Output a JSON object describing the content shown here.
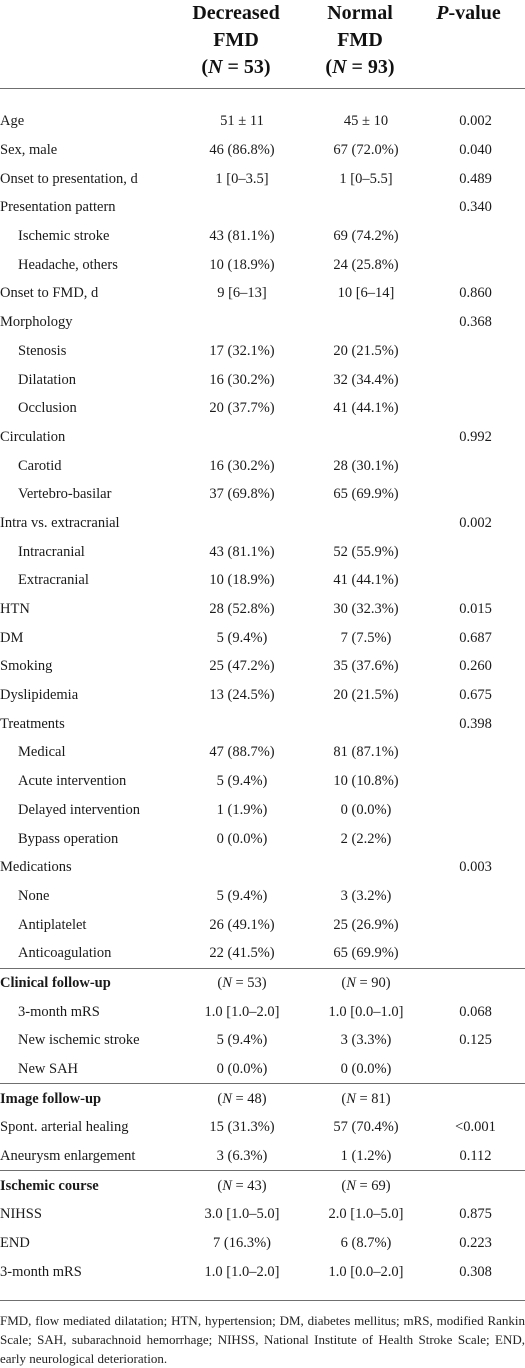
{
  "header": {
    "col1": [
      "Decreased",
      "FMD",
      "(N = 53)"
    ],
    "col2": [
      "Normal",
      "FMD",
      "(N = 93)"
    ],
    "col3": "P-value"
  },
  "rows": [
    {
      "label": "Age",
      "a": "51 ± 11",
      "b": "45 ± 10",
      "p": "0.002",
      "indent": false,
      "section": false
    },
    {
      "label": "Sex, male",
      "a": "46 (86.8%)",
      "b": "67 (72.0%)",
      "p": "0.040",
      "indent": false,
      "section": false
    },
    {
      "label": "Onset to presentation, d",
      "a": "1 [0–3.5]",
      "b": "1 [0–5.5]",
      "p": "0.489",
      "indent": false,
      "section": false
    },
    {
      "label": "Presentation pattern",
      "a": "",
      "b": "",
      "p": "0.340",
      "indent": false,
      "section": false
    },
    {
      "label": "Ischemic stroke",
      "a": "43 (81.1%)",
      "b": "69 (74.2%)",
      "p": "",
      "indent": true,
      "section": false
    },
    {
      "label": "Headache, others",
      "a": "10 (18.9%)",
      "b": "24 (25.8%)",
      "p": "",
      "indent": true,
      "section": false
    },
    {
      "label": "Onset to FMD, d",
      "a": "9 [6–13]",
      "b": "10 [6–14]",
      "p": "0.860",
      "indent": false,
      "section": false
    },
    {
      "label": "Morphology",
      "a": "",
      "b": "",
      "p": "0.368",
      "indent": false,
      "section": false
    },
    {
      "label": "Stenosis",
      "a": "17 (32.1%)",
      "b": "20 (21.5%)",
      "p": "",
      "indent": true,
      "section": false
    },
    {
      "label": "Dilatation",
      "a": "16 (30.2%)",
      "b": "32 (34.4%)",
      "p": "",
      "indent": true,
      "section": false
    },
    {
      "label": "Occlusion",
      "a": "20 (37.7%)",
      "b": "41 (44.1%)",
      "p": "",
      "indent": true,
      "section": false
    },
    {
      "label": "Circulation",
      "a": "",
      "b": "",
      "p": "0.992",
      "indent": false,
      "section": false
    },
    {
      "label": "Carotid",
      "a": "16 (30.2%)",
      "b": "28 (30.1%)",
      "p": "",
      "indent": true,
      "section": false
    },
    {
      "label": "Vertebro-basilar",
      "a": "37 (69.8%)",
      "b": "65 (69.9%)",
      "p": "",
      "indent": true,
      "section": false
    },
    {
      "label": "Intra vs. extracranial",
      "a": "",
      "b": "",
      "p": "0.002",
      "indent": false,
      "section": false
    },
    {
      "label": "Intracranial",
      "a": "43 (81.1%)",
      "b": "52 (55.9%)",
      "p": "",
      "indent": true,
      "section": false
    },
    {
      "label": "Extracranial",
      "a": "10 (18.9%)",
      "b": "41 (44.1%)",
      "p": "",
      "indent": true,
      "section": false
    },
    {
      "label": "HTN",
      "a": "28 (52.8%)",
      "b": "30 (32.3%)",
      "p": "0.015",
      "indent": false,
      "section": false
    },
    {
      "label": "DM",
      "a": "5 (9.4%)",
      "b": "7 (7.5%)",
      "p": "0.687",
      "indent": false,
      "section": false
    },
    {
      "label": "Smoking",
      "a": "25 (47.2%)",
      "b": "35 (37.6%)",
      "p": "0.260",
      "indent": false,
      "section": false
    },
    {
      "label": "Dyslipidemia",
      "a": "13 (24.5%)",
      "b": "20 (21.5%)",
      "p": "0.675",
      "indent": false,
      "section": false
    },
    {
      "label": "Treatments",
      "a": "",
      "b": "",
      "p": "0.398",
      "indent": false,
      "section": false
    },
    {
      "label": "Medical",
      "a": "47 (88.7%)",
      "b": "81 (87.1%)",
      "p": "",
      "indent": true,
      "section": false
    },
    {
      "label": "Acute intervention",
      "a": "5 (9.4%)",
      "b": "10 (10.8%)",
      "p": "",
      "indent": true,
      "section": false
    },
    {
      "label": "Delayed intervention",
      "a": "1 (1.9%)",
      "b": "0 (0.0%)",
      "p": "",
      "indent": true,
      "section": false
    },
    {
      "label": "Bypass operation",
      "a": "0 (0.0%)",
      "b": "2 (2.2%)",
      "p": "",
      "indent": true,
      "section": false
    },
    {
      "label": "Medications",
      "a": "",
      "b": "",
      "p": "0.003",
      "indent": false,
      "section": false
    },
    {
      "label": "None",
      "a": "5 (9.4%)",
      "b": "3 (3.2%)",
      "p": "",
      "indent": true,
      "section": false
    },
    {
      "label": "Antiplatelet",
      "a": "26 (49.1%)",
      "b": "25 (26.9%)",
      "p": "",
      "indent": true,
      "section": false
    },
    {
      "label": "Anticoagulation",
      "a": "22 (41.5%)",
      "b": "65 (69.9%)",
      "p": "",
      "indent": true,
      "section": false
    },
    {
      "label": "Clinical follow-up",
      "a": "(N = 53)",
      "b": "(N = 90)",
      "p": "",
      "indent": false,
      "section": true
    },
    {
      "label": "3-month mRS",
      "a": "1.0 [1.0–2.0]",
      "b": "1.0 [0.0–1.0]",
      "p": "0.068",
      "indent": true,
      "section": false
    },
    {
      "label": "New ischemic stroke",
      "a": "5 (9.4%)",
      "b": "3 (3.3%)",
      "p": "0.125",
      "indent": true,
      "section": false
    },
    {
      "label": "New SAH",
      "a": "0 (0.0%)",
      "b": "0 (0.0%)",
      "p": "",
      "indent": true,
      "section": false
    },
    {
      "label": "Image follow-up",
      "a": "(N = 48)",
      "b": "(N = 81)",
      "p": "",
      "indent": false,
      "section": true
    },
    {
      "label": "Spont. arterial healing",
      "a": "15 (31.3%)",
      "b": "57 (70.4%)",
      "p": "<0.001",
      "indent": false,
      "section": false
    },
    {
      "label": "Aneurysm enlargement",
      "a": "3 (6.3%)",
      "b": "1 (1.2%)",
      "p": "0.112",
      "indent": false,
      "section": false
    },
    {
      "label": "Ischemic course",
      "a": "(N = 43)",
      "b": "(N = 69)",
      "p": "",
      "indent": false,
      "section": true
    },
    {
      "label": "NIHSS",
      "a": "3.0 [1.0–5.0]",
      "b": "2.0 [1.0–5.0]",
      "p": "0.875",
      "indent": false,
      "section": false
    },
    {
      "label": "END",
      "a": "7 (16.3%)",
      "b": "6 (8.7%)",
      "p": "0.223",
      "indent": false,
      "section": false
    },
    {
      "label": "3-month mRS",
      "a": "1.0 [1.0–2.0]",
      "b": "1.0 [0.0–2.0]",
      "p": "0.308",
      "indent": false,
      "section": false
    }
  ],
  "footnote": "FMD, flow mediated dilatation; HTN, hypertension; DM, diabetes mellitus; mRS, modified Rankin Scale; SAH, subarachnoid hemorrhage; NIHSS, National Institute of Health Stroke Scale; END, early neurological deterioration."
}
